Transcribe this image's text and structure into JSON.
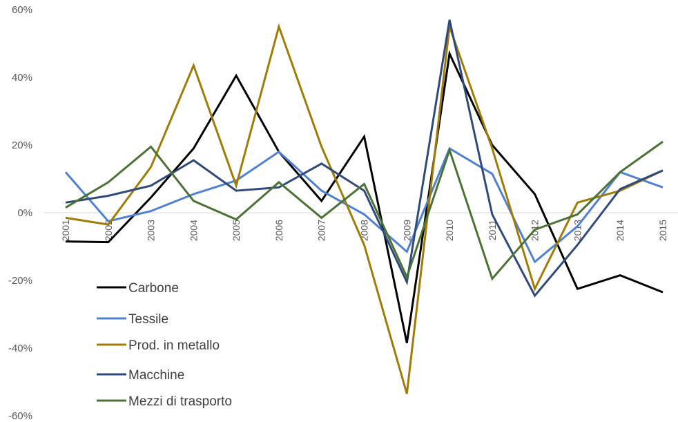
{
  "chart_data": {
    "type": "line",
    "title": "",
    "xlabel": "",
    "ylabel": "",
    "x": [
      "2001",
      "2002",
      "2003",
      "2004",
      "2005",
      "2006",
      "2007",
      "2008",
      "2009",
      "2010",
      "2011",
      "2012",
      "2013",
      "2014",
      "2015"
    ],
    "ylim": [
      -60,
      60
    ],
    "yticks": [
      60,
      40,
      20,
      0,
      -20,
      -40,
      -60
    ],
    "ytick_labels": [
      "60%",
      "40%",
      "20%",
      "0%",
      "-20%",
      "-40%",
      "-60%"
    ],
    "grid": false,
    "legend_position": "bottom-left",
    "series": [
      {
        "name": "Carbone",
        "color": "#000000",
        "values": [
          -8.5,
          -8.7,
          4.5,
          19,
          40.5,
          18,
          3.5,
          22.5,
          -38.5,
          47,
          20,
          5.5,
          -22.5,
          -18.5,
          -23.5
        ]
      },
      {
        "name": "Tessile",
        "color": "#4f81d3",
        "values": [
          12,
          -2.5,
          0.5,
          5.5,
          9.5,
          18,
          6.5,
          -0.5,
          -11.5,
          19,
          11.5,
          -14.5,
          -4,
          12,
          7.5
        ]
      },
      {
        "name": "Prod. in metallo",
        "color": "#a07b06",
        "values": [
          -1.5,
          -3.5,
          13.5,
          43.5,
          8,
          55,
          19.5,
          -9.5,
          -53.5,
          55,
          19,
          -22.5,
          3,
          6.5,
          12.5
        ]
      },
      {
        "name": "Macchine",
        "color": "#2f4a7a",
        "values": [
          3,
          5,
          8,
          15.5,
          6.5,
          7.5,
          14.5,
          6.5,
          -20.5,
          57,
          -0.5,
          -24.5,
          -9.5,
          7,
          12.5
        ]
      },
      {
        "name": "Mezzi di trasporto",
        "color": "#4a7234",
        "values": [
          1.5,
          9,
          19.5,
          3.5,
          -2,
          9,
          -1.5,
          8.5,
          -19,
          18.5,
          -19.5,
          -5,
          -0.5,
          12,
          21
        ]
      }
    ]
  }
}
